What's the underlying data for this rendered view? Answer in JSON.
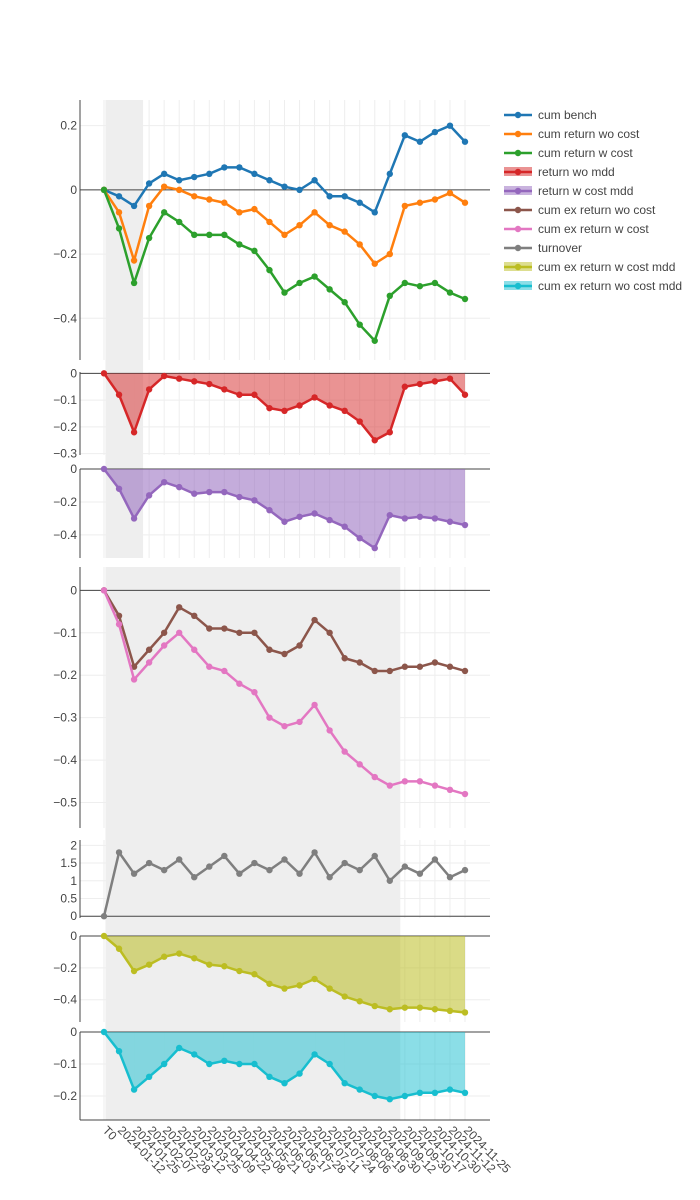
{
  "chart_data": {
    "type": "line",
    "x_categories": [
      "T0",
      "2024-01-12",
      "2024-01-25",
      "2024-02-07",
      "2024-02-28",
      "2024-03-12",
      "2024-03-25",
      "2024-04-09",
      "2024-04-22",
      "2024-05-08",
      "2024-05-21",
      "2024-06-03",
      "2024-06-17",
      "2024-06-28",
      "2024-07-11",
      "2024-07-24",
      "2024-08-06",
      "2024-08-19",
      "2024-08-30",
      "2024-09-12",
      "2024-09-30",
      "2024-10-17",
      "2024-10-30",
      "2024-11-12",
      "2024-11-25"
    ],
    "shaded_regions": [
      {
        "panels": "upper",
        "from_index": 0.1,
        "to_index": 2.6
      },
      {
        "panels": "lower",
        "from_index": 0.1,
        "to_index": 19.7
      }
    ],
    "panels": [
      {
        "name": "cumulative-returns",
        "yticks": [
          0.2,
          0,
          -0.2,
          -0.4
        ],
        "ytick_labels": [
          "0.2",
          "0",
          "−0.2",
          "−0.4"
        ],
        "ylim": [
          -0.53,
          0.28
        ],
        "zero_line": true,
        "series": [
          {
            "name": "cum bench",
            "color": "#1f77b4",
            "values": [
              0,
              -0.02,
              -0.05,
              0.02,
              0.05,
              0.03,
              0.04,
              0.05,
              0.07,
              0.07,
              0.05,
              0.03,
              0.01,
              0.0,
              0.03,
              -0.02,
              -0.02,
              -0.04,
              -0.07,
              0.05,
              0.17,
              0.15,
              0.18,
              0.2,
              0.15
            ]
          },
          {
            "name": "cum return wo cost",
            "color": "#ff7f0e",
            "values": [
              0,
              -0.07,
              -0.22,
              -0.05,
              0.01,
              0.0,
              -0.02,
              -0.03,
              -0.04,
              -0.07,
              -0.06,
              -0.1,
              -0.14,
              -0.11,
              -0.07,
              -0.11,
              -0.13,
              -0.17,
              -0.23,
              -0.2,
              -0.05,
              -0.04,
              -0.03,
              -0.01,
              -0.04
            ]
          },
          {
            "name": "cum return w cost",
            "color": "#2ca02c",
            "values": [
              0,
              -0.12,
              -0.29,
              -0.15,
              -0.07,
              -0.1,
              -0.14,
              -0.14,
              -0.14,
              -0.17,
              -0.19,
              -0.25,
              -0.32,
              -0.29,
              -0.27,
              -0.31,
              -0.35,
              -0.42,
              -0.47,
              -0.33,
              -0.29,
              -0.3,
              -0.29,
              -0.32,
              -0.34
            ]
          }
        ]
      },
      {
        "name": "return-wo-mdd",
        "yticks": [
          0,
          -0.1,
          -0.2,
          -0.3
        ],
        "ytick_labels": [
          "0",
          "−0.1",
          "−0.2",
          "−0.3"
        ],
        "ylim": [
          -0.305,
          0.005
        ],
        "area": true,
        "series": [
          {
            "name": "return wo mdd",
            "color": "#d62728",
            "fill": "rgba(214,39,40,0.5)",
            "values": [
              0,
              -0.08,
              -0.22,
              -0.06,
              -0.01,
              -0.02,
              -0.03,
              -0.04,
              -0.06,
              -0.08,
              -0.08,
              -0.13,
              -0.14,
              -0.12,
              -0.09,
              -0.12,
              -0.14,
              -0.18,
              -0.25,
              -0.22,
              -0.05,
              -0.04,
              -0.03,
              -0.02,
              -0.08
            ]
          }
        ]
      },
      {
        "name": "return-w-cost-mdd",
        "yticks": [
          0,
          -0.2,
          -0.4
        ],
        "ytick_labels": [
          "0",
          "−0.2",
          "−0.4"
        ],
        "ylim": [
          -0.54,
          0.0
        ],
        "area": true,
        "series": [
          {
            "name": "return w cost mdd",
            "color": "#9467bd",
            "fill": "rgba(148,103,189,0.55)",
            "values": [
              0,
              -0.12,
              -0.3,
              -0.16,
              -0.08,
              -0.11,
              -0.15,
              -0.14,
              -0.14,
              -0.17,
              -0.19,
              -0.25,
              -0.32,
              -0.29,
              -0.27,
              -0.31,
              -0.35,
              -0.42,
              -0.48,
              -0.28,
              -0.3,
              -0.29,
              -0.3,
              -0.32,
              -0.34
            ]
          }
        ]
      },
      {
        "name": "cum-ex-returns",
        "yticks": [
          0,
          -0.1,
          -0.2,
          -0.3,
          -0.4,
          -0.5
        ],
        "ytick_labels": [
          "0",
          "−0.1",
          "−0.2",
          "−0.3",
          "−0.4",
          "−0.5"
        ],
        "ylim": [
          -0.56,
          0.055
        ],
        "zero_line": true,
        "series": [
          {
            "name": "cum ex return wo cost",
            "color": "#8c564b",
            "values": [
              0,
              -0.06,
              -0.18,
              -0.14,
              -0.1,
              -0.04,
              -0.06,
              -0.09,
              -0.09,
              -0.1,
              -0.1,
              -0.14,
              -0.15,
              -0.13,
              -0.07,
              -0.1,
              -0.16,
              -0.17,
              -0.19,
              -0.19,
              -0.18,
              -0.18,
              -0.17,
              -0.18,
              -0.19
            ]
          },
          {
            "name": "cum ex return w cost",
            "color": "#e377c2",
            "values": [
              0,
              -0.08,
              -0.21,
              -0.17,
              -0.13,
              -0.1,
              -0.14,
              -0.18,
              -0.19,
              -0.22,
              -0.24,
              -0.3,
              -0.32,
              -0.31,
              -0.27,
              -0.33,
              -0.38,
              -0.41,
              -0.44,
              -0.46,
              -0.45,
              -0.45,
              -0.46,
              -0.47,
              -0.48
            ]
          }
        ]
      },
      {
        "name": "turnover",
        "yticks": [
          2,
          1.5,
          1,
          0.5,
          0
        ],
        "ytick_labels": [
          "2",
          "1.5",
          "1",
          "0.5",
          "0"
        ],
        "ylim": [
          -0.05,
          2.15
        ],
        "zero_line": true,
        "series": [
          {
            "name": "turnover",
            "color": "#7f7f7f",
            "values": [
              0,
              1.8,
              1.2,
              1.5,
              1.3,
              1.6,
              1.1,
              1.4,
              1.7,
              1.2,
              1.5,
              1.3,
              1.6,
              1.2,
              1.8,
              1.1,
              1.5,
              1.3,
              1.7,
              1.0,
              1.4,
              1.2,
              1.6,
              1.1,
              1.3
            ]
          }
        ]
      },
      {
        "name": "cum-ex-return-w-cost-mdd",
        "yticks": [
          0,
          -0.2,
          -0.4
        ],
        "ytick_labels": [
          "0",
          "−0.2",
          "−0.4"
        ],
        "ylim": [
          -0.54,
          0.0
        ],
        "area": true,
        "series": [
          {
            "name": "cum ex return w cost mdd",
            "color": "#bcbd22",
            "fill": "rgba(188,189,34,0.55)",
            "values": [
              0,
              -0.08,
              -0.22,
              -0.18,
              -0.13,
              -0.11,
              -0.14,
              -0.18,
              -0.19,
              -0.22,
              -0.24,
              -0.3,
              -0.33,
              -0.31,
              -0.27,
              -0.33,
              -0.38,
              -0.41,
              -0.44,
              -0.46,
              -0.45,
              -0.45,
              -0.46,
              -0.47,
              -0.48
            ]
          }
        ]
      },
      {
        "name": "cum-ex-return-wo-cost-mdd",
        "yticks": [
          0,
          -0.1,
          -0.2
        ],
        "ytick_labels": [
          "0",
          "−0.1",
          "−0.2"
        ],
        "ylim": [
          -0.275,
          0.0
        ],
        "area": true,
        "series": [
          {
            "name": "cum ex return wo cost mdd",
            "color": "#17becf",
            "fill": "rgba(23,190,207,0.5)",
            "values": [
              0,
              -0.06,
              -0.18,
              -0.14,
              -0.1,
              -0.05,
              -0.07,
              -0.1,
              -0.09,
              -0.1,
              -0.1,
              -0.14,
              -0.16,
              -0.13,
              -0.07,
              -0.1,
              -0.16,
              -0.18,
              -0.2,
              -0.21,
              -0.2,
              -0.19,
              -0.19,
              -0.18,
              -0.19
            ]
          }
        ]
      }
    ],
    "legend": [
      {
        "label": "cum bench",
        "color": "#1f77b4",
        "kind": "line"
      },
      {
        "label": "cum return wo cost",
        "color": "#ff7f0e",
        "kind": "line"
      },
      {
        "label": "cum return w cost",
        "color": "#2ca02c",
        "kind": "line"
      },
      {
        "label": "return wo mdd",
        "color": "#d62728",
        "kind": "area"
      },
      {
        "label": "return w cost mdd",
        "color": "#9467bd",
        "kind": "area"
      },
      {
        "label": "cum ex return wo cost",
        "color": "#8c564b",
        "kind": "line"
      },
      {
        "label": "cum ex return w cost",
        "color": "#e377c2",
        "kind": "line"
      },
      {
        "label": "turnover",
        "color": "#7f7f7f",
        "kind": "line"
      },
      {
        "label": "cum ex return w cost mdd",
        "color": "#bcbd22",
        "kind": "area"
      },
      {
        "label": "cum ex return wo cost mdd",
        "color": "#17becf",
        "kind": "area"
      }
    ],
    "legend_position": "top-right"
  }
}
